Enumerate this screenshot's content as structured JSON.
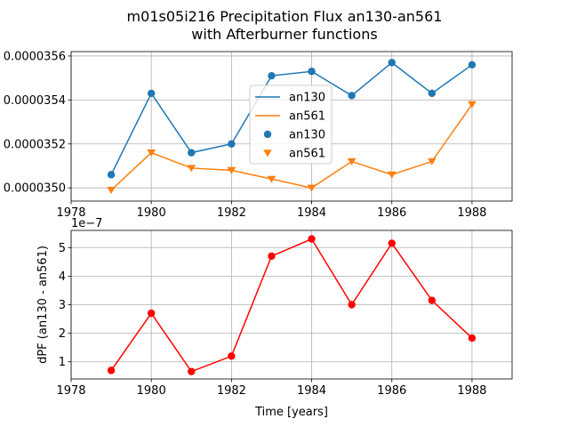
{
  "title_line1": "m01s05i216 Precipitation Flux an130-an561",
  "title_line2": "with Afterburner functions",
  "chart_data": [
    {
      "type": "line",
      "x": [
        1979,
        1980,
        1981,
        1982,
        1983,
        1984,
        1985,
        1986,
        1987,
        1988
      ],
      "xlim": [
        1978,
        1989
      ],
      "xticks": [
        "1978",
        "1980",
        "1982",
        "1984",
        "1986",
        "1988"
      ],
      "ylim": [
        3.494e-05,
        3.562e-05
      ],
      "yticks": [
        "0.0000350",
        "0.0000352",
        "0.0000354",
        "0.0000356"
      ],
      "grid": true,
      "legend_position": "center",
      "series": [
        {
          "name": "an130",
          "kind": "line",
          "color": "#1f77b4",
          "values": [
            3.506e-05,
            3.543e-05,
            3.516e-05,
            3.52e-05,
            3.551e-05,
            3.553e-05,
            3.542e-05,
            3.557e-05,
            3.543e-05,
            3.556e-05
          ]
        },
        {
          "name": "an561",
          "kind": "line",
          "color": "#ff7f0e",
          "values": [
            3.499e-05,
            3.516e-05,
            3.509e-05,
            3.508e-05,
            3.504e-05,
            3.5e-05,
            3.512e-05,
            3.506e-05,
            3.512e-05,
            3.538e-05
          ]
        },
        {
          "name": "an130",
          "kind": "scatter",
          "marker": "circle",
          "color": "#1f77b4"
        },
        {
          "name": "an561",
          "kind": "scatter",
          "marker": "triangle-down",
          "color": "#ff7f0e"
        }
      ]
    },
    {
      "type": "line",
      "x": [
        1979,
        1980,
        1981,
        1982,
        1983,
        1984,
        1985,
        1986,
        1987,
        1988
      ],
      "xlim": [
        1978,
        1989
      ],
      "xticks": [
        "1978",
        "1980",
        "1982",
        "1984",
        "1986",
        "1988"
      ],
      "ylim": [
        4e-08,
        5.6e-07
      ],
      "yticks": [
        "1",
        "2",
        "3",
        "4",
        "5"
      ],
      "offset_text": "1e−7",
      "xlabel": "Time [years]",
      "ylabel": "dPF (an130 - an561)",
      "grid": true,
      "series": [
        {
          "kind": "line+markers",
          "color": "#ff0000",
          "values": [
            7e-08,
            2.7e-07,
            6.6e-08,
            1.2e-07,
            4.7e-07,
            5.3e-07,
            3e-07,
            5.15e-07,
            3.15e-07,
            1.83e-07
          ]
        }
      ]
    }
  ]
}
